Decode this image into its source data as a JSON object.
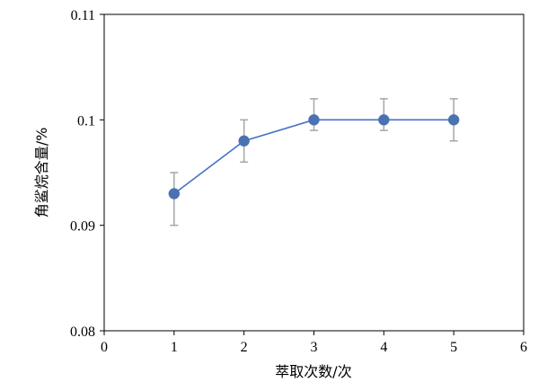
{
  "chart_data": {
    "type": "line",
    "title": "",
    "xlabel": "萃取次数/次",
    "ylabel": "角鲨烷含量/%",
    "xlim": [
      0,
      6
    ],
    "ylim": [
      0.08,
      0.11
    ],
    "x_ticks": [
      0,
      1,
      2,
      3,
      4,
      5,
      6
    ],
    "x_tick_labels": [
      "0",
      "1",
      "2",
      "3",
      "4",
      "5",
      "6"
    ],
    "y_ticks": [
      0.08,
      0.09,
      0.1,
      0.11
    ],
    "y_tick_labels": [
      "0.08",
      "0.09",
      "0.1",
      "0.11"
    ],
    "grid": false,
    "legend": "none",
    "series": [
      {
        "x": [
          1,
          2,
          3,
          4,
          5
        ],
        "y": [
          0.093,
          0.098,
          0.1,
          0.1,
          0.1
        ],
        "error_lower": [
          0.09,
          0.096,
          0.099,
          0.099,
          0.098
        ],
        "error_upper": [
          0.095,
          0.1,
          0.102,
          0.102,
          0.102
        ],
        "line_color": "#4472c4",
        "marker_color": "#4a72b2",
        "error_bar_color": "#a6a6a6"
      }
    ]
  }
}
